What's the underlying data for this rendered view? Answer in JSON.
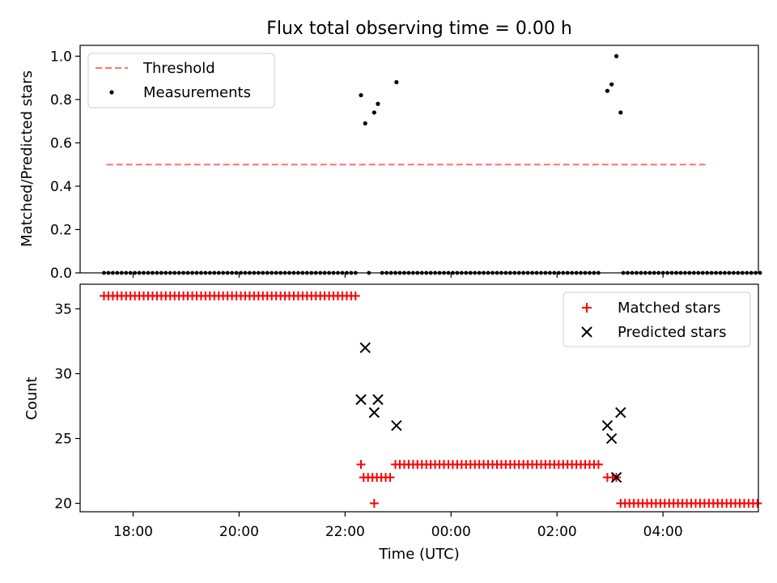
{
  "chart_data": [
    {
      "type": "scatter",
      "title": "Flux total observing time = 0.00 h",
      "xlabel": "",
      "ylabel": "Matched/Predicted stars",
      "xlim": [
        17.0,
        29.8
      ],
      "ylim": [
        0,
        1.05
      ],
      "yticks": [
        0.0,
        0.2,
        0.4,
        0.6,
        0.8,
        1.0
      ],
      "ytick_labels": [
        "0.0",
        "0.2",
        "0.4",
        "0.6",
        "0.8",
        "1.0"
      ],
      "threshold": {
        "label": "Threshold",
        "value": 0.5,
        "x_start": 17.5,
        "x_end": 28.8,
        "color": "#ff7070"
      },
      "series": [
        {
          "name": "Measurements",
          "color": "#000000",
          "zero_x_ranges": [
            [
              17.45,
              22.2
            ],
            [
              22.45,
              22.5
            ],
            [
              22.7,
              26.8
            ],
            [
              27.25,
              29.85
            ]
          ],
          "nonzero_points": [
            {
              "x": 22.3,
              "y": 0.82
            },
            {
              "x": 22.38,
              "y": 0.69
            },
            {
              "x": 22.55,
              "y": 0.74
            },
            {
              "x": 22.62,
              "y": 0.78
            },
            {
              "x": 22.97,
              "y": 0.88
            },
            {
              "x": 26.95,
              "y": 0.84
            },
            {
              "x": 27.03,
              "y": 0.87
            },
            {
              "x": 27.12,
              "y": 1.0
            },
            {
              "x": 27.2,
              "y": 0.74
            }
          ]
        }
      ],
      "legend": [
        "Threshold",
        "Measurements"
      ],
      "legend_position": "upper-left"
    },
    {
      "type": "scatter",
      "title": "",
      "xlabel": "Time (UTC)",
      "ylabel": "Count",
      "xlim": [
        17.0,
        29.8
      ],
      "ylim": [
        19.35,
        36.9
      ],
      "yticks": [
        20,
        25,
        30,
        35
      ],
      "ytick_labels": [
        "20",
        "25",
        "30",
        "35"
      ],
      "xticks": [
        18,
        20,
        22,
        24,
        26,
        28
      ],
      "xtick_labels": [
        "18:00",
        "20:00",
        "22:00",
        "00:00",
        "02:00",
        "04:00"
      ],
      "series": [
        {
          "name": "Matched stars",
          "marker": "+",
          "color": "#ff0000",
          "runs": [
            {
              "x_start": 17.45,
              "x_end": 22.2,
              "y": 36
            },
            {
              "x_start": 22.35,
              "x_end": 22.9,
              "y": 22
            },
            {
              "x_start": 22.95,
              "x_end": 26.85,
              "y": 23
            },
            {
              "x_start": 27.2,
              "x_end": 29.85,
              "y": 20
            }
          ],
          "points": [
            {
              "x": 22.3,
              "y": 23
            },
            {
              "x": 22.55,
              "y": 20
            },
            {
              "x": 26.95,
              "y": 22
            },
            {
              "x": 27.05,
              "y": 22
            },
            {
              "x": 27.12,
              "y": 22
            }
          ]
        },
        {
          "name": "Predicted stars",
          "marker": "x",
          "color": "#000000",
          "points": [
            {
              "x": 22.3,
              "y": 28
            },
            {
              "x": 22.38,
              "y": 32
            },
            {
              "x": 22.55,
              "y": 27
            },
            {
              "x": 22.62,
              "y": 28
            },
            {
              "x": 22.97,
              "y": 26
            },
            {
              "x": 26.95,
              "y": 26
            },
            {
              "x": 27.03,
              "y": 25
            },
            {
              "x": 27.12,
              "y": 22
            },
            {
              "x": 27.2,
              "y": 27
            }
          ]
        }
      ],
      "legend": [
        "Matched stars",
        "Predicted stars"
      ],
      "legend_position": "upper-right"
    }
  ]
}
